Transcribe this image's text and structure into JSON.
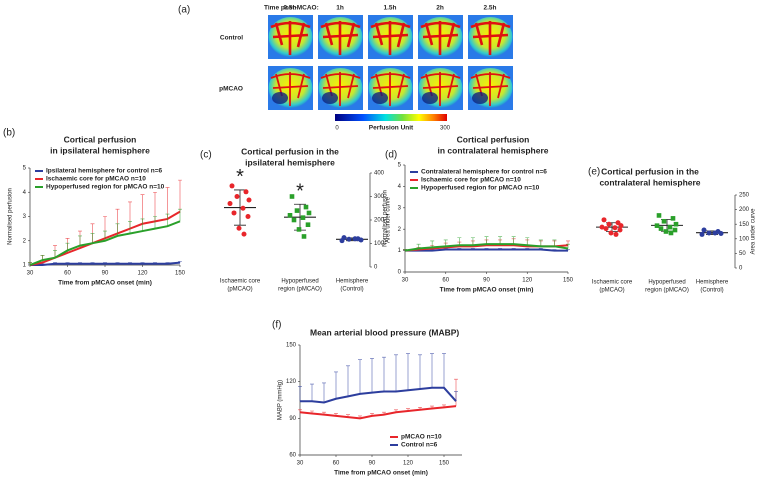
{
  "panel_a": {
    "label": "(a)",
    "header": "Time post-MCAO:",
    "times": [
      "0.5h",
      "1h",
      "1.5h",
      "2h",
      "2.5h"
    ],
    "rows": [
      "Control",
      "pMCAO"
    ],
    "colorbar": {
      "min": "0",
      "label": "Perfusion Unit",
      "max": "300"
    }
  },
  "chart_data": [
    {
      "type": "line",
      "panel": "(b)",
      "title": [
        "Cortical perfusion",
        "in ipsilateral hemisphere"
      ],
      "x_label": "Time from pMCAO onset (min)",
      "y_label": "Normalised perfusion",
      "x": [
        30,
        40,
        50,
        60,
        70,
        80,
        90,
        100,
        110,
        120,
        130,
        140,
        150
      ],
      "xlim": [
        30,
        150
      ],
      "xticks": [
        30,
        60,
        90,
        120,
        150
      ],
      "ylim": [
        1,
        5
      ],
      "yticks": [
        1,
        2,
        3,
        4,
        5
      ],
      "series": [
        {
          "name": "Ipsilateral hemisphere for control n=6",
          "color": "#2d3e9e",
          "values": [
            1.0,
            1.0,
            1.05,
            1.05,
            1.05,
            1.05,
            1.05,
            1.05,
            1.05,
            1.05,
            1.05,
            1.05,
            1.1
          ],
          "errors": [
            0.05,
            0.05,
            0.05,
            0.05,
            0.05,
            0.05,
            0.05,
            0.05,
            0.05,
            0.05,
            0.05,
            0.05,
            0.05
          ]
        },
        {
          "name": "Ischaemic core for pMCAO n=10",
          "color": "#e8262b",
          "values": [
            1.0,
            1.1,
            1.3,
            1.5,
            1.7,
            1.9,
            2.1,
            2.3,
            2.5,
            2.7,
            2.8,
            2.9,
            3.2
          ],
          "errors": [
            0.1,
            0.3,
            0.5,
            0.6,
            0.7,
            0.8,
            0.9,
            1.0,
            1.1,
            1.2,
            1.2,
            1.3,
            1.3
          ]
        },
        {
          "name": "Hypoperfused region for pMCAO n=10",
          "color": "#2aa02a",
          "values": [
            1.0,
            1.2,
            1.3,
            1.6,
            1.8,
            1.9,
            2.0,
            2.2,
            2.3,
            2.4,
            2.5,
            2.6,
            2.8
          ],
          "errors": [
            0.1,
            0.2,
            0.3,
            0.3,
            0.4,
            0.4,
            0.4,
            0.5,
            0.5,
            0.5,
            0.5,
            0.5,
            0.5
          ]
        }
      ]
    },
    {
      "type": "strip",
      "panel": "(c)",
      "title": [
        "Cortical perfusion in the",
        "ipsilateral hemisphere"
      ],
      "y_label": "Area under curve",
      "categories": [
        [
          "Ischaemic core",
          "(pMCAO)"
        ],
        [
          "Hypoperfused",
          "region (pMCAO)"
        ],
        [
          "Hemisphere",
          "(Control)"
        ]
      ],
      "markers": [
        "*",
        "*",
        null
      ],
      "ylim": [
        0,
        400
      ],
      "yticks": [
        0,
        100,
        200,
        300,
        400
      ],
      "series": [
        {
          "color": "#e8262b",
          "shape": "circle",
          "values": [
            345,
            320,
            300,
            285,
            270,
            250,
            230,
            215,
            165,
            140
          ],
          "mean": 253,
          "sd": 75
        },
        {
          "color": "#2aa02a",
          "shape": "square",
          "values": [
            300,
            255,
            240,
            230,
            220,
            210,
            200,
            180,
            160,
            130
          ],
          "mean": 212,
          "sd": 55
        },
        {
          "color": "#2d3e9e",
          "shape": "circle",
          "values": [
            125,
            120,
            118,
            115,
            112,
            120
          ],
          "mean": 118,
          "sd": 6
        }
      ]
    },
    {
      "type": "line",
      "panel": "(d)",
      "title": [
        "Cortical perfusion",
        "in contralateral hemisphere"
      ],
      "x_label": "Time from pMCAO onset (min)",
      "y_label": "Normalised perfusion",
      "x": [
        30,
        40,
        50,
        60,
        70,
        80,
        90,
        100,
        110,
        120,
        130,
        140,
        150
      ],
      "xlim": [
        30,
        150
      ],
      "xticks": [
        30,
        60,
        90,
        120,
        150
      ],
      "ylim": [
        0,
        5
      ],
      "yticks": [
        0,
        1,
        2,
        3,
        4,
        5
      ],
      "series": [
        {
          "name": "Contralateral hemisphere for control n=6",
          "color": "#2d3e9e",
          "values": [
            1.0,
            1.0,
            1.0,
            1.05,
            1.05,
            1.05,
            1.05,
            1.05,
            1.05,
            1.05,
            1.05,
            1.0,
            1.0
          ],
          "errors": [
            0.05,
            0.05,
            0.05,
            0.05,
            0.05,
            0.05,
            0.05,
            0.05,
            0.05,
            0.05,
            0.05,
            0.05,
            0.05
          ]
        },
        {
          "name": "Ischaemic core for pMCAO n=10",
          "color": "#e8262b",
          "values": [
            1.0,
            1.05,
            1.1,
            1.15,
            1.2,
            1.2,
            1.25,
            1.25,
            1.25,
            1.2,
            1.2,
            1.2,
            1.25
          ],
          "errors": [
            0.05,
            0.1,
            0.15,
            0.2,
            0.2,
            0.25,
            0.25,
            0.25,
            0.3,
            0.3,
            0.25,
            0.25,
            0.2
          ]
        },
        {
          "name": "Hypoperfused region for pMCAO n=10",
          "color": "#2aa02a",
          "values": [
            1.0,
            1.1,
            1.15,
            1.2,
            1.25,
            1.25,
            1.3,
            1.3,
            1.3,
            1.25,
            1.2,
            1.2,
            1.1
          ],
          "errors": [
            0.05,
            0.2,
            0.3,
            0.3,
            0.35,
            0.35,
            0.35,
            0.35,
            0.35,
            0.35,
            0.3,
            0.3,
            0.2
          ]
        }
      ]
    },
    {
      "type": "strip",
      "panel": "(e)",
      "title": [
        "Cortical perfusion in the",
        "contralateral hemisphere"
      ],
      "y_label": "Area under curve",
      "categories": [
        [
          "Ischaemic core",
          "(pMCAO)"
        ],
        [
          "Hypoperfused",
          "region (pMCAO)"
        ],
        [
          "Hemisphere",
          "(Control)"
        ]
      ],
      "markers": [
        null,
        null,
        null
      ],
      "ylim": [
        0,
        250
      ],
      "yticks": [
        0,
        50,
        100,
        150,
        200,
        250
      ],
      "series": [
        {
          "color": "#e8262b",
          "shape": "circle",
          "values": [
            165,
            155,
            150,
            145,
            140,
            138,
            135,
            130,
            120,
            115
          ],
          "mean": 140,
          "sd": 15
        },
        {
          "color": "#2aa02a",
          "shape": "square",
          "values": [
            180,
            170,
            160,
            150,
            145,
            140,
            135,
            130,
            125,
            120
          ],
          "mean": 146,
          "sd": 20
        },
        {
          "color": "#2d3e9e",
          "shape": "circle",
          "values": [
            130,
            125,
            120,
            118,
            115,
            120
          ],
          "mean": 121,
          "sd": 6
        }
      ]
    },
    {
      "type": "line",
      "panel": "(f)",
      "title": [
        "Mean arterial blood pressure (MABP)"
      ],
      "x_label": "Time from pMCAO onset (min)",
      "y_label": "MABP (mmHg)",
      "x": [
        30,
        40,
        50,
        60,
        70,
        80,
        90,
        100,
        110,
        120,
        130,
        140,
        150,
        160
      ],
      "xlim": [
        30,
        165
      ],
      "xticks": [
        30,
        60,
        90,
        120,
        150
      ],
      "ylim": [
        60,
        150
      ],
      "yticks": [
        60,
        90,
        120,
        150
      ],
      "legend": "bottom-right",
      "series": [
        {
          "name": "pMCAO n=10",
          "color": "#e8262b",
          "values": [
            95,
            94,
            93,
            92,
            91,
            90,
            92,
            93,
            95,
            96,
            97,
            98,
            99,
            100
          ],
          "errors": [
            2,
            2,
            2,
            2,
            2,
            2,
            2,
            2,
            2,
            2,
            2,
            2,
            2,
            22
          ]
        },
        {
          "name": "Control n=6",
          "color": "#2d3e9e",
          "values": [
            104,
            104,
            103,
            106,
            108,
            110,
            111,
            112,
            112,
            113,
            114,
            115,
            115,
            104
          ],
          "errors": [
            12,
            14,
            16,
            22,
            25,
            28,
            28,
            28,
            30,
            30,
            28,
            28,
            28,
            8
          ]
        }
      ]
    }
  ]
}
